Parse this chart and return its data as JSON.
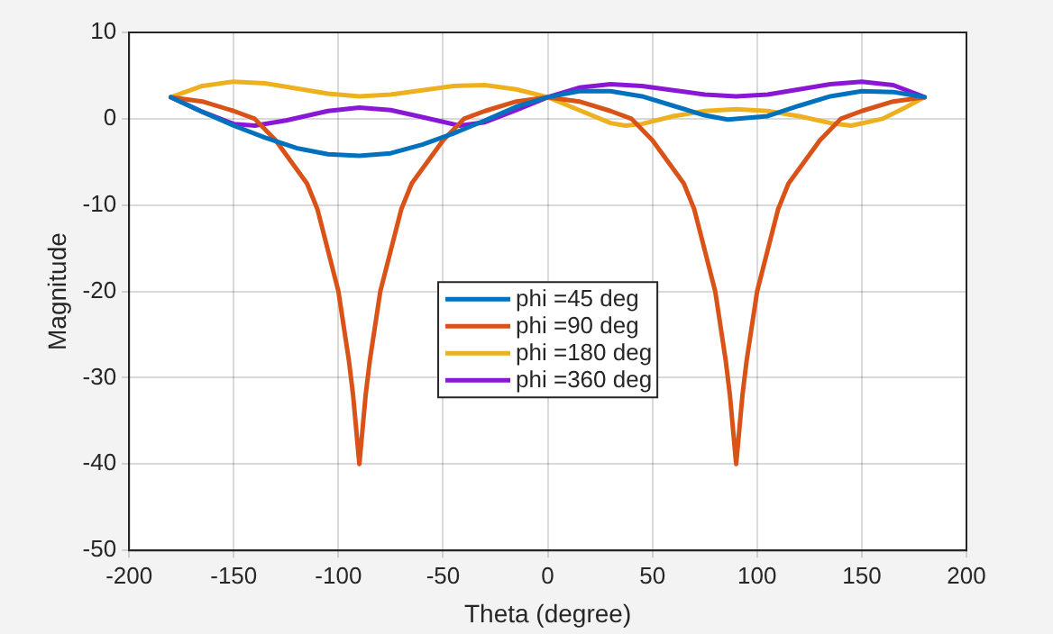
{
  "chart_data": {
    "type": "line",
    "xlabel": "Theta (degree)",
    "ylabel": "Magnitude",
    "xlim": [
      -200,
      200
    ],
    "xticks": [
      -200,
      -150,
      -100,
      -50,
      0,
      50,
      100,
      150,
      200
    ],
    "ylim": [
      -50,
      10
    ],
    "yticks": [
      -50,
      -40,
      -30,
      -20,
      -10,
      0,
      10
    ],
    "grid": true,
    "legend": "center",
    "marker": "none",
    "line_style": "solid",
    "series": [
      {
        "name": "phi =45 deg",
        "color": "#0072bd",
        "x": [
          -180,
          -165,
          -150,
          -135,
          -120,
          -105,
          -90,
          -75,
          -60,
          -45,
          -30,
          -15,
          0,
          15,
          30,
          45,
          60,
          75,
          86,
          105,
          120,
          135,
          150,
          165,
          180
        ],
        "values": [
          2.5,
          0.8,
          -0.8,
          -2.2,
          -3.4,
          -4.1,
          -4.3,
          -4.0,
          -3.0,
          -1.7,
          -0.2,
          1.4,
          2.5,
          3.2,
          3.2,
          2.6,
          1.5,
          0.4,
          -0.1,
          0.3,
          1.5,
          2.6,
          3.2,
          3.1,
          2.5
        ]
      },
      {
        "name": "phi =90 deg",
        "color": "#d95319",
        "x": [
          -180,
          -165,
          -150,
          -140,
          -130,
          -115,
          -110,
          -100,
          -95,
          -93,
          -91.5,
          -90,
          -88.5,
          -87,
          -85,
          -80,
          -70,
          -65,
          -50,
          -40,
          -30,
          -15,
          0,
          15,
          30,
          40,
          50,
          65,
          70,
          80,
          85,
          87,
          88.5,
          90,
          91.5,
          93,
          95,
          100,
          110,
          115,
          130,
          140,
          150,
          165,
          180
        ],
        "values": [
          2.5,
          2.0,
          0.9,
          0,
          -2.5,
          -7.5,
          -10.5,
          -20,
          -28,
          -32,
          -36,
          -40,
          -36,
          -32,
          -28,
          -20,
          -10.5,
          -7.5,
          -2.5,
          0,
          0.9,
          2.0,
          2.5,
          2.0,
          0.9,
          0,
          -2.5,
          -7.5,
          -10.5,
          -20,
          -28,
          -32,
          -36,
          -40,
          -36,
          -32,
          -28,
          -20,
          -10.5,
          -7.5,
          -2.5,
          0,
          0.9,
          2.0,
          2.5
        ]
      },
      {
        "name": "phi =180 deg",
        "color": "#edb120",
        "x": [
          -180,
          -165,
          -150,
          -135,
          -120,
          -105,
          -90,
          -75,
          -60,
          -45,
          -30,
          -15,
          0,
          15,
          30,
          37,
          45,
          60,
          75,
          90,
          105,
          120,
          135,
          145,
          160,
          170,
          180
        ],
        "values": [
          2.5,
          3.8,
          4.3,
          4.1,
          3.5,
          2.9,
          2.6,
          2.8,
          3.3,
          3.8,
          3.9,
          3.4,
          2.5,
          1.0,
          -0.5,
          -0.8,
          -0.6,
          0.3,
          0.9,
          1.1,
          0.9,
          0.3,
          -0.5,
          -0.8,
          0,
          1.2,
          2.5
        ]
      },
      {
        "name": "phi =360 deg",
        "color": "#8a17d6",
        "x": [
          -180,
          -165,
          -150,
          -140,
          -125,
          -105,
          -90,
          -75,
          -60,
          -42,
          -30,
          -15,
          0,
          15,
          30,
          45,
          60,
          75,
          90,
          105,
          120,
          135,
          150,
          165,
          180
        ],
        "values": [
          2.5,
          0.8,
          -0.6,
          -0.8,
          -0.2,
          0.9,
          1.3,
          1.0,
          0.2,
          -0.8,
          -0.4,
          1.0,
          2.5,
          3.6,
          4.0,
          3.8,
          3.3,
          2.8,
          2.6,
          2.8,
          3.4,
          4.0,
          4.3,
          3.9,
          2.5
        ]
      }
    ]
  }
}
